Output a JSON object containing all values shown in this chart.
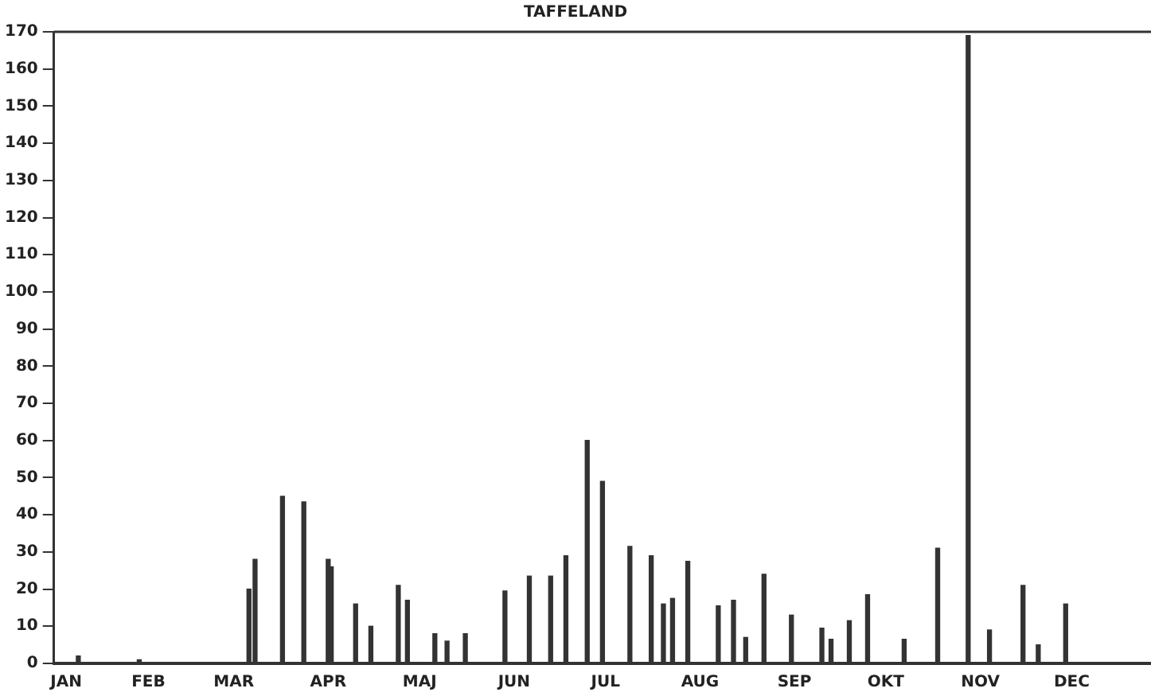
{
  "chart_data": {
    "type": "bar",
    "title": "TAFFELAND",
    "color": "#333333",
    "x": [
      "--01-09",
      "--01-29",
      "--03-06",
      "--03-08",
      "--03-17",
      "--03-24",
      "--04-01",
      "--04-02",
      "--04-10",
      "--04-15",
      "--04-24",
      "--04-27",
      "--05-06",
      "--05-10",
      "--05-16",
      "--05-29",
      "--06-06",
      "--06-13",
      "--06-18",
      "--06-25",
      "--06-30",
      "--07-09",
      "--07-16",
      "--07-20",
      "--07-23",
      "--07-28",
      "--08-07",
      "--08-12",
      "--08-16",
      "--08-22",
      "--08-31",
      "--09-10",
      "--09-13",
      "--09-19",
      "--09-25",
      "--10-07",
      "--10-18",
      "--10-28",
      "--11-04",
      "--11-15",
      "--11-20",
      "--11-29"
    ],
    "values": [
      2,
      1,
      20,
      28,
      45,
      43.5,
      28,
      26,
      16,
      10,
      21,
      17,
      8,
      6,
      8,
      19.5,
      23.5,
      23.5,
      29,
      60,
      49,
      31.5,
      29,
      16,
      17.5,
      27.5,
      15.5,
      17,
      7,
      24,
      13,
      9.5,
      6.5,
      11.5,
      18.5,
      6.5,
      31,
      169,
      9,
      21,
      5,
      16
    ],
    "xlim": [
      "--01-01",
      "--12-27"
    ],
    "xticks": [
      {
        "value": "--01-05",
        "label": "JAN"
      },
      {
        "value": "--02-01",
        "label": "FEB"
      },
      {
        "value": "--03-01",
        "label": "MAR"
      },
      {
        "value": "--04-01",
        "label": "APR"
      },
      {
        "value": "--05-01",
        "label": "MAJ"
      },
      {
        "value": "--06-01",
        "label": "JUN"
      },
      {
        "value": "--07-01",
        "label": "JUL"
      },
      {
        "value": "--08-01",
        "label": "AUG"
      },
      {
        "value": "--09-01",
        "label": "SEP"
      },
      {
        "value": "--10-01",
        "label": "OKT"
      },
      {
        "value": "--11-01",
        "label": "NOV"
      },
      {
        "value": "--12-01",
        "label": "DEC"
      }
    ],
    "ylim": [
      0,
      170
    ],
    "yticks": [
      0,
      10,
      20,
      30,
      40,
      50,
      60,
      70,
      80,
      90,
      100,
      110,
      120,
      130,
      140,
      150,
      160,
      170
    ],
    "grid": false,
    "legend": false
  }
}
